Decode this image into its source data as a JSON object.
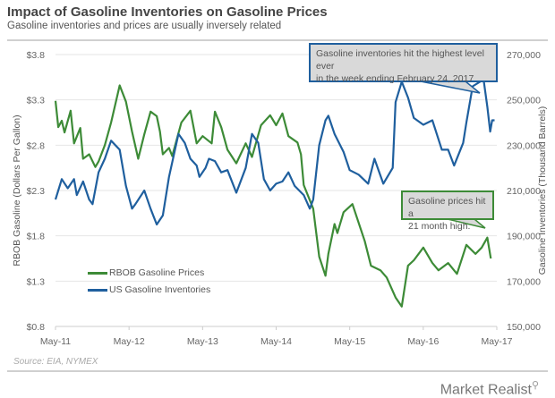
{
  "header": {
    "title": "Impact of Gasoline Inventories on Gasoline Prices",
    "subtitle": "Gasoline inventories and prices are usually inversely related"
  },
  "footer": {
    "source": "Source: EIA, NYMEX",
    "logo": "Market Realist"
  },
  "chart_data": {
    "type": "line",
    "title": "Impact of Gasoline Inventories on Gasoline Prices",
    "subtitle": "Gasoline inventories and prices are usually inversely related",
    "xlabel": "",
    "ylabel_left": "RBOB Gasoline (Dollars Per Gallon)",
    "ylabel_right": "Gasoline Inventories  (Thousand Barrels)",
    "x_ticks": [
      "May-11",
      "May-12",
      "May-13",
      "May-14",
      "May-15",
      "May-16",
      "May-17"
    ],
    "xlim": [
      "2011-05-01",
      "2017-05-01"
    ],
    "y_left_ticks": [
      "$0.8",
      "$1.3",
      "$1.8",
      "$2.3",
      "$2.8",
      "$3.3",
      "$3.8"
    ],
    "y_left_lim": [
      0.8,
      3.8
    ],
    "y_right_ticks": [
      "150,000",
      "170,000",
      "190,000",
      "210,000",
      "230,000",
      "250,000",
      "270,000"
    ],
    "y_right_lim": [
      150000,
      270000
    ],
    "grid": true,
    "legend_position": "bottom-left",
    "annotations": [
      {
        "text_line1": "Gasoline inventories hit the highest level ever",
        "text_line2": "in the week ending February 24, 2017",
        "color": "#1f5f9e"
      },
      {
        "text_line1": "Gasoline prices hit a",
        "text_line2": "21 month high.",
        "color": "#3d8b37"
      }
    ],
    "series": [
      {
        "name": "RBOB Gasoline Prices",
        "axis": "left",
        "color": "#3d8b37",
        "points": [
          [
            "2011-05-01",
            3.29
          ],
          [
            "2011-05-15",
            3.0
          ],
          [
            "2011-06-01",
            3.07
          ],
          [
            "2011-06-15",
            2.94
          ],
          [
            "2011-07-15",
            3.18
          ],
          [
            "2011-08-01",
            2.82
          ],
          [
            "2011-09-01",
            2.99
          ],
          [
            "2011-09-15",
            2.65
          ],
          [
            "2011-10-15",
            2.7
          ],
          [
            "2011-11-15",
            2.56
          ],
          [
            "2011-12-01",
            2.62
          ],
          [
            "2012-01-01",
            2.8
          ],
          [
            "2012-02-01",
            3.05
          ],
          [
            "2012-03-15",
            3.46
          ],
          [
            "2012-04-15",
            3.28
          ],
          [
            "2012-05-15",
            2.95
          ],
          [
            "2012-06-15",
            2.65
          ],
          [
            "2012-07-15",
            2.92
          ],
          [
            "2012-08-15",
            3.17
          ],
          [
            "2012-09-15",
            3.12
          ],
          [
            "2012-10-01",
            2.95
          ],
          [
            "2012-10-15",
            2.7
          ],
          [
            "2012-11-15",
            2.77
          ],
          [
            "2012-12-01",
            2.68
          ],
          [
            "2013-01-15",
            3.05
          ],
          [
            "2013-03-01",
            3.18
          ],
          [
            "2013-04-01",
            2.82
          ],
          [
            "2013-05-01",
            2.9
          ],
          [
            "2013-06-15",
            2.82
          ],
          [
            "2013-07-01",
            3.17
          ],
          [
            "2013-08-01",
            3.0
          ],
          [
            "2013-09-01",
            2.75
          ],
          [
            "2013-10-15",
            2.6
          ],
          [
            "2013-12-01",
            2.82
          ],
          [
            "2014-01-01",
            2.67
          ],
          [
            "2014-02-15",
            3.02
          ],
          [
            "2014-04-01",
            3.13
          ],
          [
            "2014-05-01",
            3.02
          ],
          [
            "2014-06-01",
            3.15
          ],
          [
            "2014-07-01",
            2.9
          ],
          [
            "2014-08-15",
            2.83
          ],
          [
            "2014-09-01",
            2.7
          ],
          [
            "2014-09-15",
            2.36
          ],
          [
            "2014-11-01",
            2.1
          ],
          [
            "2014-12-01",
            1.57
          ],
          [
            "2015-01-01",
            1.36
          ],
          [
            "2015-01-15",
            1.6
          ],
          [
            "2015-02-15",
            1.93
          ],
          [
            "2015-03-01",
            1.83
          ],
          [
            "2015-04-01",
            2.06
          ],
          [
            "2015-05-15",
            2.15
          ],
          [
            "2015-07-15",
            1.74
          ],
          [
            "2015-08-15",
            1.47
          ],
          [
            "2015-10-01",
            1.42
          ],
          [
            "2015-11-01",
            1.34
          ],
          [
            "2015-12-15",
            1.12
          ],
          [
            "2016-01-15",
            1.02
          ],
          [
            "2016-02-15",
            1.47
          ],
          [
            "2016-03-15",
            1.53
          ],
          [
            "2016-05-01",
            1.67
          ],
          [
            "2016-06-15",
            1.5
          ],
          [
            "2016-07-15",
            1.42
          ],
          [
            "2016-09-01",
            1.5
          ],
          [
            "2016-10-15",
            1.38
          ],
          [
            "2016-12-01",
            1.7
          ],
          [
            "2017-01-15",
            1.6
          ],
          [
            "2017-02-15",
            1.67
          ],
          [
            "2017-03-15",
            1.78
          ],
          [
            "2017-04-01",
            1.55
          ]
        ]
      },
      {
        "name": "US Gasoline Inventories",
        "axis": "right",
        "color": "#1f5f9e",
        "points": [
          [
            "2011-05-01",
            206000
          ],
          [
            "2011-06-01",
            215000
          ],
          [
            "2011-07-01",
            211000
          ],
          [
            "2011-08-01",
            215000
          ],
          [
            "2011-08-15",
            208000
          ],
          [
            "2011-09-15",
            214000
          ],
          [
            "2011-10-15",
            206000
          ],
          [
            "2011-11-01",
            204000
          ],
          [
            "2011-12-01",
            218000
          ],
          [
            "2012-01-01",
            224000
          ],
          [
            "2012-02-01",
            232000
          ],
          [
            "2012-03-15",
            228000
          ],
          [
            "2012-04-15",
            212000
          ],
          [
            "2012-05-15",
            202000
          ],
          [
            "2012-06-01",
            204000
          ],
          [
            "2012-07-15",
            210000
          ],
          [
            "2012-08-15",
            202000
          ],
          [
            "2012-09-15",
            195000
          ],
          [
            "2012-10-15",
            199000
          ],
          [
            "2012-11-15",
            216000
          ],
          [
            "2013-01-01",
            235000
          ],
          [
            "2013-02-01",
            231000
          ],
          [
            "2013-03-01",
            224000
          ],
          [
            "2013-04-01",
            221000
          ],
          [
            "2013-04-15",
            216000
          ],
          [
            "2013-05-15",
            220000
          ],
          [
            "2013-06-01",
            224000
          ],
          [
            "2013-07-01",
            223000
          ],
          [
            "2013-08-01",
            218000
          ],
          [
            "2013-09-01",
            219000
          ],
          [
            "2013-10-15",
            209000
          ],
          [
            "2013-12-01",
            220000
          ],
          [
            "2014-01-01",
            235000
          ],
          [
            "2014-02-01",
            231000
          ],
          [
            "2014-03-01",
            215000
          ],
          [
            "2014-04-01",
            210000
          ],
          [
            "2014-05-01",
            213000
          ],
          [
            "2014-06-01",
            214000
          ],
          [
            "2014-07-01",
            218000
          ],
          [
            "2014-08-01",
            212000
          ],
          [
            "2014-09-15",
            208000
          ],
          [
            "2014-10-15",
            202000
          ],
          [
            "2014-11-01",
            206000
          ],
          [
            "2014-12-01",
            230000
          ],
          [
            "2015-01-01",
            241000
          ],
          [
            "2015-01-15",
            243000
          ],
          [
            "2015-02-15",
            235000
          ],
          [
            "2015-04-01",
            227000
          ],
          [
            "2015-05-01",
            219000
          ],
          [
            "2015-06-15",
            217000
          ],
          [
            "2015-08-01",
            213000
          ],
          [
            "2015-09-01",
            224000
          ],
          [
            "2015-10-15",
            213000
          ],
          [
            "2015-12-01",
            220000
          ],
          [
            "2015-12-15",
            249000
          ],
          [
            "2016-01-15",
            258000
          ],
          [
            "2016-02-15",
            251000
          ],
          [
            "2016-03-15",
            242000
          ],
          [
            "2016-05-01",
            239000
          ],
          [
            "2016-06-15",
            241000
          ],
          [
            "2016-08-01",
            228000
          ],
          [
            "2016-09-01",
            228000
          ],
          [
            "2016-10-01",
            221000
          ],
          [
            "2016-11-15",
            231000
          ],
          [
            "2016-12-01",
            240000
          ],
          [
            "2017-01-01",
            256000
          ],
          [
            "2017-02-24",
            259000
          ],
          [
            "2017-03-15",
            247000
          ],
          [
            "2017-03-29",
            236000
          ],
          [
            "2017-04-08",
            241000
          ],
          [
            "2017-04-20",
            241000
          ]
        ]
      }
    ]
  }
}
